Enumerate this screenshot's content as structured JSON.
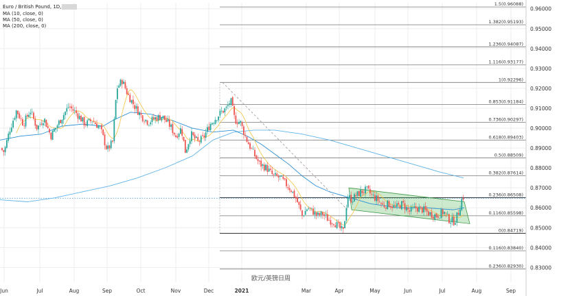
{
  "chart_data": {
    "type": "candlestick",
    "legend": {
      "title": "Euro / British Pound, 1D,",
      "lines": [
        "MA (10, close, 0)",
        "MA (50, close, 0)",
        "MA (200, close, 0)"
      ]
    },
    "watermark": "欧元/英镑日周",
    "y_axis": {
      "min": 0.826,
      "max": 0.963,
      "ticks": [
        "0.96000",
        "0.95000",
        "0.94000",
        "0.93000",
        "0.92000",
        "0.91000",
        "0.90000",
        "0.89000",
        "0.88000",
        "0.87000",
        "0.86000",
        "0.85000",
        "0.84000",
        "0.83000"
      ],
      "values": [
        0.96,
        0.95,
        0.94,
        0.93,
        0.92,
        0.91,
        0.9,
        0.89,
        0.88,
        0.87,
        0.86,
        0.85,
        0.84,
        0.83
      ]
    },
    "x_axis": {
      "labels": [
        "Jun",
        "Jul",
        "Aug",
        "Sep",
        "Oct",
        "Nov",
        "Dec",
        "2021",
        "Mar",
        "Apr",
        "May",
        "Jun",
        "Jul",
        "Aug",
        "Sep"
      ],
      "bold": "2021"
    },
    "fibonacci": [
      {
        "label": "1.5(0.96088)",
        "value": 0.96088
      },
      {
        "label": "1.382(0.95193)",
        "value": 0.95193
      },
      {
        "label": "1.236(0.94087)",
        "value": 0.94087
      },
      {
        "label": "1.116(0.93177)",
        "value": 0.93177
      },
      {
        "label": "1(0.92296)",
        "value": 0.92296
      },
      {
        "label": "0.853(0.91184)",
        "value": 0.91184
      },
      {
        "label": "0.736(0.90297)",
        "value": 0.90297
      },
      {
        "label": "0.618(0.89403)",
        "value": 0.89403
      },
      {
        "label": "0.5(0.88509)",
        "value": 0.88509
      },
      {
        "label": "0.382(0.87614)",
        "value": 0.87614
      },
      {
        "label": "0.236(0.86508)",
        "value": 0.86508
      },
      {
        "label": "0.116(0.85598)",
        "value": 0.85598
      },
      {
        "label": "0(0.84719)",
        "value": 0.84719
      },
      {
        "label": "0.116(0.83840)",
        "value": 0.8384
      },
      {
        "label": "0.236(0.82930)",
        "value": 0.8293
      }
    ],
    "current_price": 0.8648,
    "colors": {
      "up": "#26a69a",
      "down": "#ef5350",
      "ma10": "#f5c342",
      "ma50": "#2b8fd6",
      "ma200": "#5fb4e8",
      "channel_fill": "#4caf50",
      "fib_line": "#777777",
      "current_line": "#2b8fd6"
    },
    "anchors": [
      [
        0,
        0.89
      ],
      [
        6,
        0.888
      ],
      [
        14,
        0.899
      ],
      [
        24,
        0.909
      ],
      [
        34,
        0.902
      ],
      [
        44,
        0.909
      ],
      [
        54,
        0.9
      ],
      [
        64,
        0.905
      ],
      [
        74,
        0.896
      ],
      [
        86,
        0.903
      ],
      [
        100,
        0.911
      ],
      [
        110,
        0.908
      ],
      [
        124,
        0.902
      ],
      [
        134,
        0.904
      ],
      [
        146,
        0.9
      ],
      [
        156,
        0.889
      ],
      [
        164,
        0.893
      ],
      [
        170,
        0.92
      ],
      [
        178,
        0.924
      ],
      [
        186,
        0.917
      ],
      [
        196,
        0.911
      ],
      [
        206,
        0.906
      ],
      [
        216,
        0.903
      ],
      [
        226,
        0.905
      ],
      [
        236,
        0.906
      ],
      [
        248,
        0.901
      ],
      [
        256,
        0.896
      ],
      [
        264,
        0.9
      ],
      [
        270,
        0.888
      ],
      [
        278,
        0.897
      ],
      [
        288,
        0.893
      ],
      [
        296,
        0.895
      ],
      [
        306,
        0.902
      ],
      [
        314,
        0.905
      ],
      [
        322,
        0.908
      ],
      [
        330,
        0.91
      ],
      [
        336,
        0.914
      ],
      [
        342,
        0.904
      ],
      [
        350,
        0.903
      ],
      [
        358,
        0.895
      ],
      [
        368,
        0.888
      ],
      [
        378,
        0.882
      ],
      [
        388,
        0.88
      ],
      [
        398,
        0.876
      ],
      [
        408,
        0.875
      ],
      [
        416,
        0.872
      ],
      [
        424,
        0.869
      ],
      [
        432,
        0.864
      ],
      [
        440,
        0.856
      ],
      [
        448,
        0.86
      ],
      [
        456,
        0.858
      ],
      [
        462,
        0.856
      ],
      [
        470,
        0.857
      ],
      [
        478,
        0.854
      ],
      [
        486,
        0.853
      ],
      [
        494,
        0.85
      ],
      [
        500,
        0.848
      ],
      [
        506,
        0.866
      ],
      [
        512,
        0.864
      ],
      [
        518,
        0.866
      ],
      [
        526,
        0.868
      ],
      [
        534,
        0.869
      ],
      [
        542,
        0.866
      ],
      [
        550,
        0.864
      ],
      [
        558,
        0.861
      ],
      [
        566,
        0.862
      ],
      [
        576,
        0.86
      ],
      [
        586,
        0.862
      ],
      [
        596,
        0.858
      ],
      [
        606,
        0.86
      ],
      [
        616,
        0.859
      ],
      [
        626,
        0.857
      ],
      [
        636,
        0.856
      ],
      [
        646,
        0.858
      ],
      [
        654,
        0.854
      ],
      [
        662,
        0.853
      ],
      [
        668,
        0.858
      ],
      [
        672,
        0.864
      ],
      [
        676,
        0.866
      ]
    ],
    "ma200_points": [
      [
        0,
        0.864
      ],
      [
        40,
        0.863
      ],
      [
        80,
        0.865
      ],
      [
        120,
        0.868
      ],
      [
        160,
        0.871
      ],
      [
        200,
        0.875
      ],
      [
        240,
        0.88
      ],
      [
        280,
        0.886
      ],
      [
        310,
        0.894
      ],
      [
        340,
        0.898
      ],
      [
        370,
        0.899
      ],
      [
        400,
        0.899
      ],
      [
        440,
        0.897
      ],
      [
        480,
        0.894
      ],
      [
        520,
        0.89
      ],
      [
        560,
        0.886
      ],
      [
        600,
        0.882
      ],
      [
        640,
        0.878
      ],
      [
        675,
        0.875
      ]
    ],
    "ma50_points": [
      [
        0,
        0.894
      ],
      [
        30,
        0.896
      ],
      [
        60,
        0.897
      ],
      [
        90,
        0.901
      ],
      [
        120,
        0.902
      ],
      [
        150,
        0.901
      ],
      [
        165,
        0.904
      ],
      [
        190,
        0.908
      ],
      [
        220,
        0.907
      ],
      [
        250,
        0.904
      ],
      [
        280,
        0.9
      ],
      [
        310,
        0.898
      ],
      [
        340,
        0.899
      ],
      [
        360,
        0.896
      ],
      [
        380,
        0.892
      ],
      [
        400,
        0.887
      ],
      [
        420,
        0.882
      ],
      [
        440,
        0.876
      ],
      [
        460,
        0.871
      ],
      [
        480,
        0.868
      ],
      [
        500,
        0.866
      ],
      [
        520,
        0.864
      ],
      [
        540,
        0.862
      ],
      [
        560,
        0.861
      ],
      [
        580,
        0.86
      ],
      [
        600,
        0.86
      ],
      [
        620,
        0.86
      ],
      [
        640,
        0.8595
      ],
      [
        660,
        0.859
      ],
      [
        676,
        0.86
      ]
    ],
    "channel": [
      [
        508,
        0.87
      ],
      [
        676,
        0.863
      ],
      [
        684,
        0.852
      ],
      [
        512,
        0.859
      ]
    ],
    "dashed_trend": [
      [
        324,
        0.923
      ],
      [
        506,
        0.859
      ]
    ]
  }
}
